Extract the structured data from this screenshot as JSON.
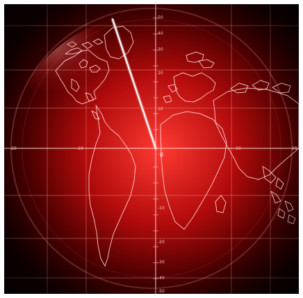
{
  "scene": {
    "colors": {
      "background": "#120000",
      "glow": "#ff2a2a",
      "grid": "#ff9c9c",
      "coastline": "#ffd3d3",
      "sweep": "#fff2f2"
    }
  },
  "axis_labels": {
    "y_top": [
      "50",
      "40",
      "30",
      "20",
      "10"
    ],
    "y_bottom": [
      "-10",
      "-20",
      "-30",
      "-40",
      "-50"
    ],
    "x_left": [
      "-20",
      "-10"
    ],
    "x_right": [
      "10",
      "20"
    ],
    "origin": "0"
  }
}
